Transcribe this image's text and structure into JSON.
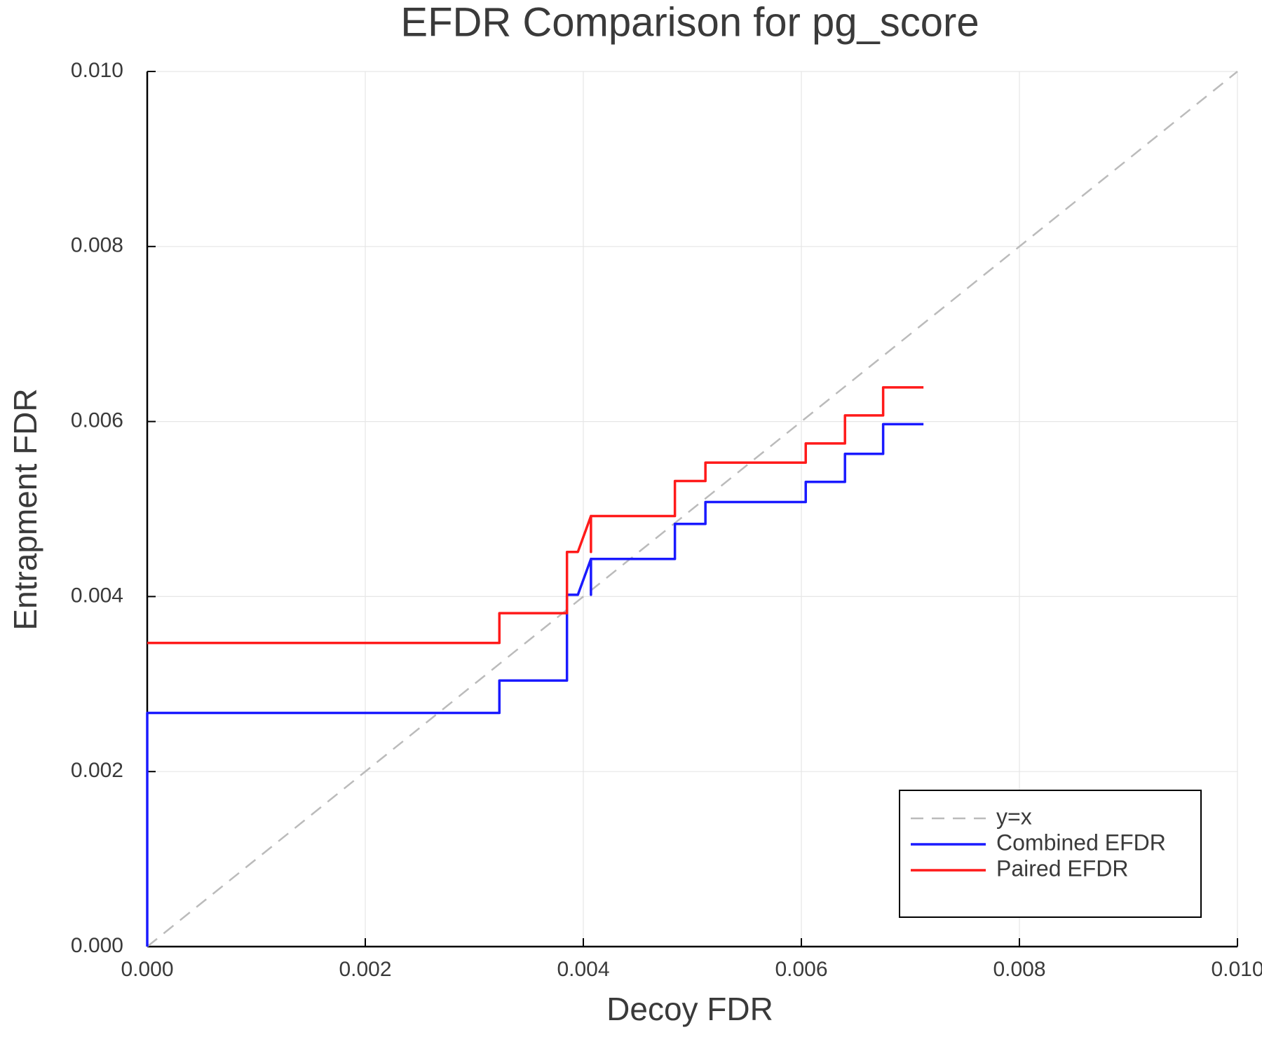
{
  "chart_data": {
    "type": "line",
    "title": "EFDR Comparison for pg_score",
    "xlabel": "Decoy FDR",
    "ylabel": "Entrapment FDR",
    "xlim": [
      0,
      0.01
    ],
    "ylim": [
      0,
      0.01
    ],
    "xticks": [
      {
        "value": 0,
        "label": "0.000"
      },
      {
        "value": 0.002,
        "label": "0.002"
      },
      {
        "value": 0.004,
        "label": "0.004"
      },
      {
        "value": 0.006,
        "label": "0.006"
      },
      {
        "value": 0.008,
        "label": "0.008"
      },
      {
        "value": 0.01,
        "label": "0.010"
      }
    ],
    "yticks": [
      {
        "value": 0,
        "label": "0.000"
      },
      {
        "value": 0.002,
        "label": "0.002"
      },
      {
        "value": 0.004,
        "label": "0.004"
      },
      {
        "value": 0.006,
        "label": "0.006"
      },
      {
        "value": 0.008,
        "label": "0.008"
      },
      {
        "value": 0.01,
        "label": "0.010"
      }
    ],
    "grid": true,
    "legend": "lower right",
    "series": [
      {
        "name": "y=x",
        "color": "#bbbbbb",
        "dashed": true,
        "x": [
          0,
          0.01
        ],
        "values": [
          0,
          0.01
        ]
      },
      {
        "name": "Combined EFDR",
        "color": "#1a1aff",
        "dashed": false,
        "x": [
          0,
          0,
          0.00323,
          0.00323,
          0.00385,
          0.00385,
          0.00395,
          0.00407,
          0.00407,
          0.00407,
          0.00484,
          0.00484,
          0.00512,
          0.00512,
          0.00604,
          0.00604,
          0.0064,
          0.0064,
          0.00675,
          0.00675,
          0.00712
        ],
        "values": [
          0,
          0.00267,
          0.00267,
          0.00304,
          0.00304,
          0.00402,
          0.00402,
          0.00443,
          0.00402,
          0.00443,
          0.00443,
          0.00483,
          0.00483,
          0.00508,
          0.00508,
          0.00531,
          0.00531,
          0.00563,
          0.00563,
          0.00597,
          0.00597
        ]
      },
      {
        "name": "Paired EFDR",
        "color": "#ff1a1a",
        "dashed": false,
        "x": [
          0,
          0.00323,
          0.00323,
          0.00385,
          0.00385,
          0.00395,
          0.00407,
          0.00407,
          0.00407,
          0.00484,
          0.00484,
          0.00512,
          0.00512,
          0.00604,
          0.00604,
          0.0064,
          0.0064,
          0.00675,
          0.00675,
          0.00712
        ],
        "values": [
          0.00347,
          0.00347,
          0.00381,
          0.00381,
          0.00451,
          0.00451,
          0.00492,
          0.00451,
          0.00492,
          0.00492,
          0.00532,
          0.00532,
          0.00553,
          0.00553,
          0.00575,
          0.00575,
          0.00607,
          0.00607,
          0.00639,
          0.00639
        ]
      }
    ]
  }
}
